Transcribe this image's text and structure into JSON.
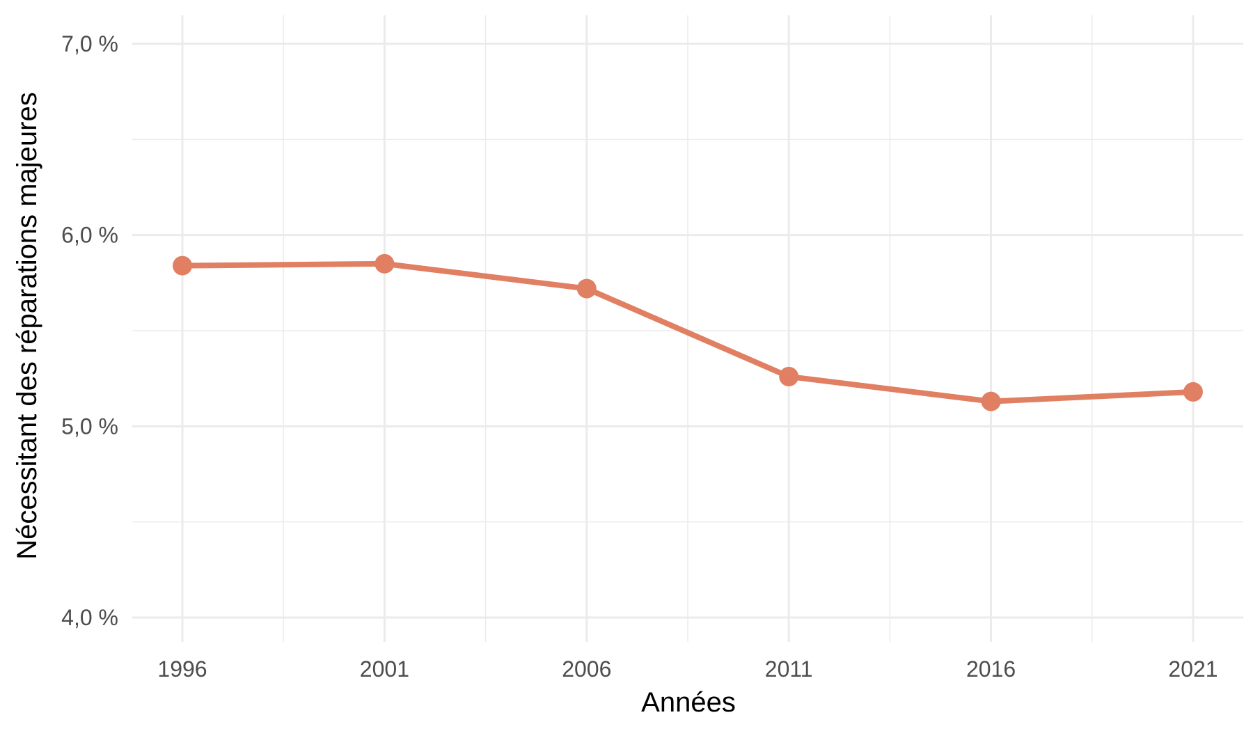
{
  "chart_data": {
    "type": "line",
    "x": [
      1996,
      2001,
      2006,
      2011,
      2016,
      2021
    ],
    "series": [
      {
        "values": [
          5.84,
          5.85,
          5.72,
          5.26,
          5.13,
          5.18
        ]
      }
    ],
    "xlabel": "Années",
    "ylabel": "Nécessitant des réparations majeures",
    "xlim": [
      1996,
      2021
    ],
    "ylim": [
      4.0,
      7.0
    ],
    "x_ticks": [
      1996,
      2001,
      2006,
      2011,
      2016,
      2021
    ],
    "x_tick_labels": [
      "1996",
      "2001",
      "2006",
      "2011",
      "2016",
      "2021"
    ],
    "y_ticks": [
      4.0,
      5.0,
      6.0,
      7.0
    ],
    "y_tick_labels": [
      "4,0 %",
      "5,0 %",
      "6,0 %",
      "7,0 %"
    ],
    "grid": true,
    "colors": {
      "line": "#e07f62",
      "grid": "#ebebeb"
    }
  }
}
